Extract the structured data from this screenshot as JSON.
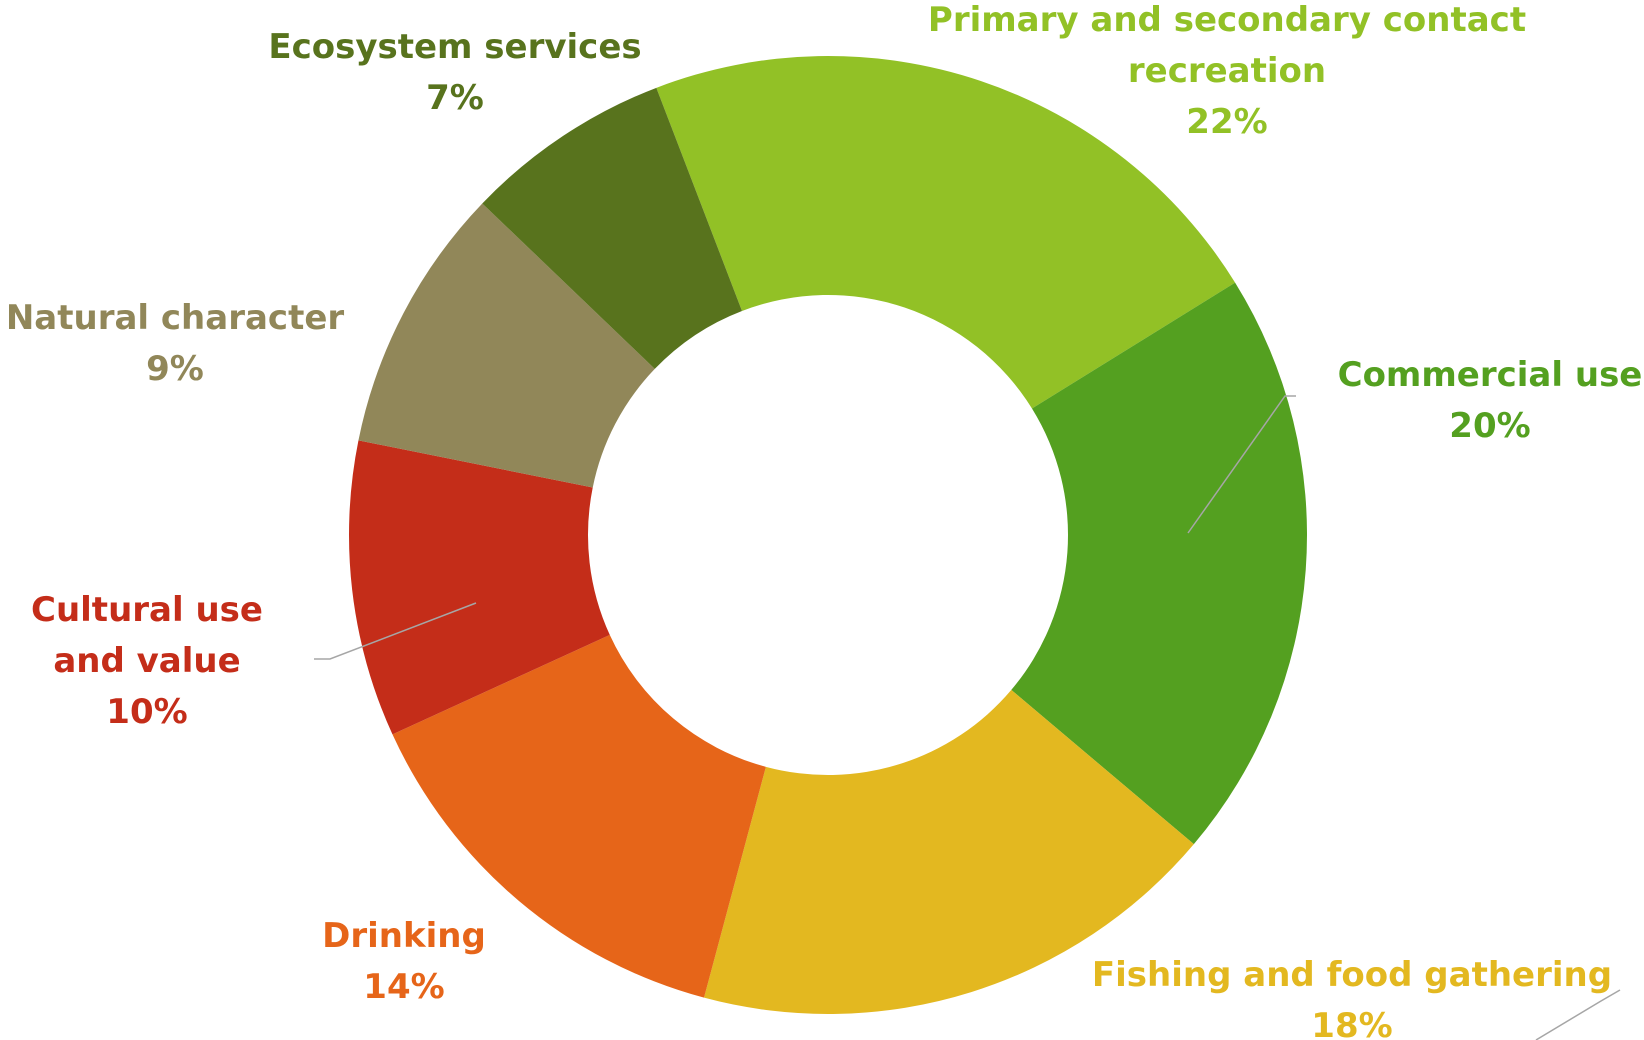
{
  "chart_data": {
    "type": "pie",
    "title": "",
    "donut": true,
    "slices": [
      {
        "label": "Primary and secondary contact recreation",
        "label_lines": [
          "Primary and secondary contact",
          "recreation"
        ],
        "value": 22,
        "value_label": "22%",
        "color": "#92c126"
      },
      {
        "label": "Commercial use",
        "label_lines": [
          "Commercial use"
        ],
        "value": 20,
        "value_label": "20%",
        "color": "#54a020"
      },
      {
        "label": "Fishing and food gathering",
        "label_lines": [
          "Fishing and food gathering"
        ],
        "value": 18,
        "value_label": "18%",
        "color": "#e3b820"
      },
      {
        "label": "Drinking",
        "label_lines": [
          "Drinking"
        ],
        "value": 14,
        "value_label": "14%",
        "color": "#e66519"
      },
      {
        "label": "Cultural use and value",
        "label_lines": [
          "Cultural use",
          "and value"
        ],
        "value": 10,
        "value_label": "10%",
        "color": "#c42d19"
      },
      {
        "label": "Natural character",
        "label_lines": [
          "Natural character"
        ],
        "value": 9,
        "value_label": "9%",
        "color": "#918759"
      },
      {
        "label": "Ecosystem services",
        "label_lines": [
          "Ecosystem services"
        ],
        "value": 7,
        "value_label": "7%",
        "color": "#58731d"
      }
    ]
  }
}
